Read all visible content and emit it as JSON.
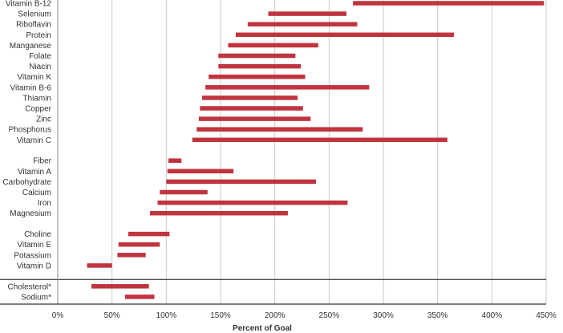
{
  "chart_data": {
    "type": "bar",
    "orientation": "horizontal",
    "style": "floating-range",
    "xlabel": "Percent of Goal",
    "xlim": [
      0,
      450
    ],
    "xticks": [
      0,
      50,
      100,
      150,
      200,
      250,
      300,
      350,
      400,
      450
    ],
    "xtick_labels": [
      "0%",
      "50%",
      "100%",
      "150%",
      "200%",
      "250%",
      "300%",
      "350%",
      "400%",
      "450%"
    ],
    "grid": "vertical",
    "bar_color": "#c0343f",
    "groups": [
      {
        "rows": [
          {
            "label": "Vitamin B-12",
            "range": [
              272,
              448
            ]
          },
          {
            "label": "Selenium",
            "range": [
              194,
              266
            ]
          },
          {
            "label": "Riboflavin",
            "range": [
              175,
              276
            ]
          },
          {
            "label": "Protein",
            "range": [
              164,
              365
            ]
          },
          {
            "label": "Manganese",
            "range": [
              157,
              240
            ]
          },
          {
            "label": "Folate",
            "range": [
              148,
              219
            ]
          },
          {
            "label": "Niacin",
            "range": [
              148,
              224
            ]
          },
          {
            "label": "Vitamin K",
            "range": [
              139,
              228
            ]
          },
          {
            "label": "Vitamin B-6",
            "range": [
              136,
              287
            ]
          },
          {
            "label": "Thiamin",
            "range": [
              133,
              221
            ]
          },
          {
            "label": "Copper",
            "range": [
              131,
              226
            ]
          },
          {
            "label": "Zinc",
            "range": [
              130,
              233
            ]
          },
          {
            "label": "Phosphorus",
            "range": [
              128,
              281
            ]
          },
          {
            "label": "Vitamin C",
            "range": [
              124,
              359
            ]
          }
        ]
      },
      {
        "rows": [
          {
            "label": "Fiber",
            "range": [
              102,
              114
            ]
          },
          {
            "label": "Vitamin A",
            "range": [
              101,
              162
            ]
          },
          {
            "label": "Carbohydrate",
            "range": [
              100,
              238
            ]
          },
          {
            "label": "Calcium",
            "range": [
              94,
              138
            ]
          },
          {
            "label": "Iron",
            "range": [
              92,
              267
            ]
          },
          {
            "label": "Magnesium",
            "range": [
              85,
              212
            ]
          }
        ]
      },
      {
        "rows": [
          {
            "label": "Choline",
            "range": [
              65,
              103
            ]
          },
          {
            "label": "Vitamin E",
            "range": [
              56,
              94
            ]
          },
          {
            "label": "Potassium",
            "range": [
              55,
              81
            ]
          },
          {
            "label": "Vitamin D",
            "range": [
              27,
              50
            ]
          }
        ]
      },
      {
        "separator_above": true,
        "rows": [
          {
            "label": "Cholesterol*",
            "range": [
              31,
              84
            ]
          },
          {
            "label": "Sodium*",
            "range": [
              62,
              89
            ]
          }
        ]
      }
    ]
  }
}
